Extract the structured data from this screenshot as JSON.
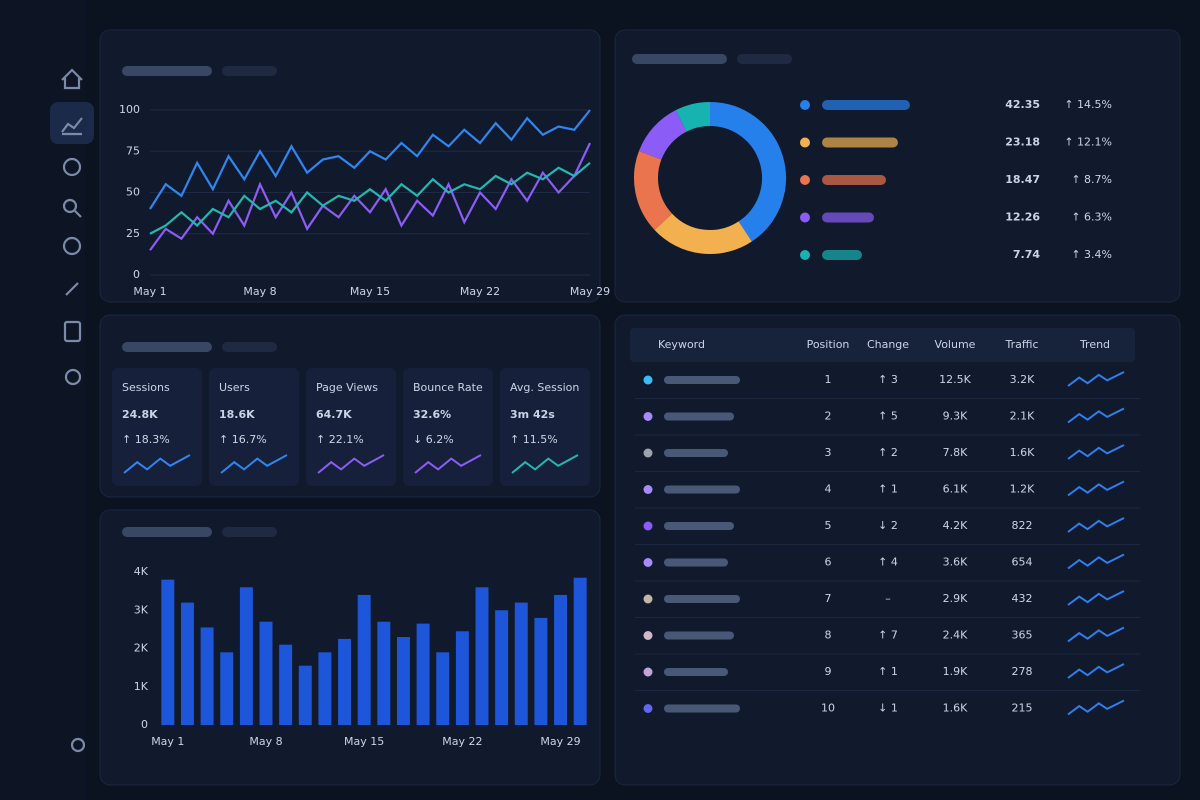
{
  "chart_data": [
    {
      "type": "line",
      "categories": [
        "May 1",
        null,
        null,
        null,
        null,
        null,
        null,
        "May 8",
        null,
        null,
        null,
        null,
        null,
        null,
        "May 15",
        null,
        null,
        null,
        null,
        null,
        null,
        "May 22",
        null,
        null,
        null,
        null,
        null,
        null,
        "May 29"
      ],
      "series": [
        {
          "color": "#2f86f0",
          "values": [
            40,
            55,
            48,
            68,
            52,
            72,
            58,
            75,
            60,
            78,
            62,
            70,
            72,
            65,
            75,
            70,
            80,
            72,
            85,
            78,
            88,
            80,
            92,
            82,
            95,
            85,
            90,
            88,
            100
          ]
        },
        {
          "color": "#8b5cf6",
          "values": [
            15,
            28,
            22,
            35,
            25,
            45,
            30,
            55,
            35,
            50,
            28,
            42,
            35,
            48,
            38,
            52,
            30,
            45,
            36,
            55,
            32,
            50,
            40,
            58,
            45,
            62,
            50,
            60,
            80
          ]
        },
        {
          "color": "#22b8b0",
          "values": [
            25,
            30,
            38,
            30,
            40,
            35,
            48,
            40,
            45,
            38,
            50,
            42,
            48,
            45,
            52,
            45,
            55,
            48,
            58,
            50,
            55,
            52,
            60,
            55,
            62,
            58,
            65,
            60,
            68
          ]
        }
      ],
      "ylim": [
        0,
        100
      ],
      "yticks": [
        0,
        25,
        50,
        75,
        100
      ],
      "grid": true
    },
    {
      "type": "pie",
      "donut": true,
      "values": [
        42.35,
        23.18,
        18.47,
        12.26,
        7.74
      ],
      "colors": [
        "#2680eb",
        "#f2b04e",
        "#e9744e",
        "#8b5cf6",
        "#17b3b0"
      ],
      "changes": [
        "↑ 14.5%",
        "↑ 12.1%",
        "↑ 8.7%",
        "↑ 6.3%",
        "↑ 3.4%"
      ]
    },
    {
      "type": "bar",
      "categories": [
        "May 1",
        null,
        null,
        null,
        null,
        "May 8",
        null,
        null,
        null,
        null,
        "May 15",
        null,
        null,
        null,
        null,
        "May 22",
        null,
        null,
        null,
        null,
        "May 29",
        null
      ],
      "values": [
        3800,
        3200,
        2550,
        1900,
        3600,
        2700,
        2100,
        1550,
        1900,
        2250,
        3400,
        2700,
        2300,
        2650,
        1900,
        2450,
        3600,
        3000,
        3200,
        2800,
        3400,
        3850
      ],
      "color": "#1e56d9",
      "ylim": [
        0,
        4000
      ],
      "yticks": [
        0,
        {
          "value": 1000,
          "label": "1K"
        },
        {
          "value": 2000,
          "label": "2K"
        },
        {
          "value": 3000,
          "label": "3K"
        },
        {
          "value": 4000,
          "label": "4K"
        }
      ],
      "grid": false
    }
  ],
  "kpis": [
    {
      "label": "Sessions",
      "value": "24.8K",
      "change": "↑ 18.3%"
    },
    {
      "label": "Users",
      "value": "18.6K",
      "change": "↑ 16.7%"
    },
    {
      "label": "Page Views",
      "value": "64.7K",
      "change": "↑ 22.1%"
    },
    {
      "label": "Bounce Rate",
      "value": "32.6%",
      "change": "↓ 6.2%"
    },
    {
      "label": "Avg. Session",
      "value": "3m 42s",
      "change": "↑ 11.5%"
    }
  ],
  "table": {
    "columns": [
      "Keyword",
      "Position",
      "Change",
      "Volume",
      "Traffic",
      "Trend"
    ],
    "rows": [
      [
        1,
        "↑ 3",
        "12.5K",
        "3.2K"
      ],
      [
        2,
        "↑ 5",
        "9.3K",
        "2.1K"
      ],
      [
        3,
        "↑ 2",
        "7.8K",
        "1.6K"
      ],
      [
        4,
        "↑ 1",
        "6.1K",
        "1.2K"
      ],
      [
        5,
        "↓ 2",
        "4.2K",
        822
      ],
      [
        6,
        "↑ 4",
        "3.6K",
        654
      ],
      [
        7,
        "–",
        "2.9K",
        432
      ],
      [
        8,
        "↑ 7",
        "2.4K",
        365
      ],
      [
        9,
        "↑ 1",
        "1.9K",
        278
      ],
      [
        10,
        "↓ 1",
        "1.6K",
        215
      ]
    ]
  }
}
